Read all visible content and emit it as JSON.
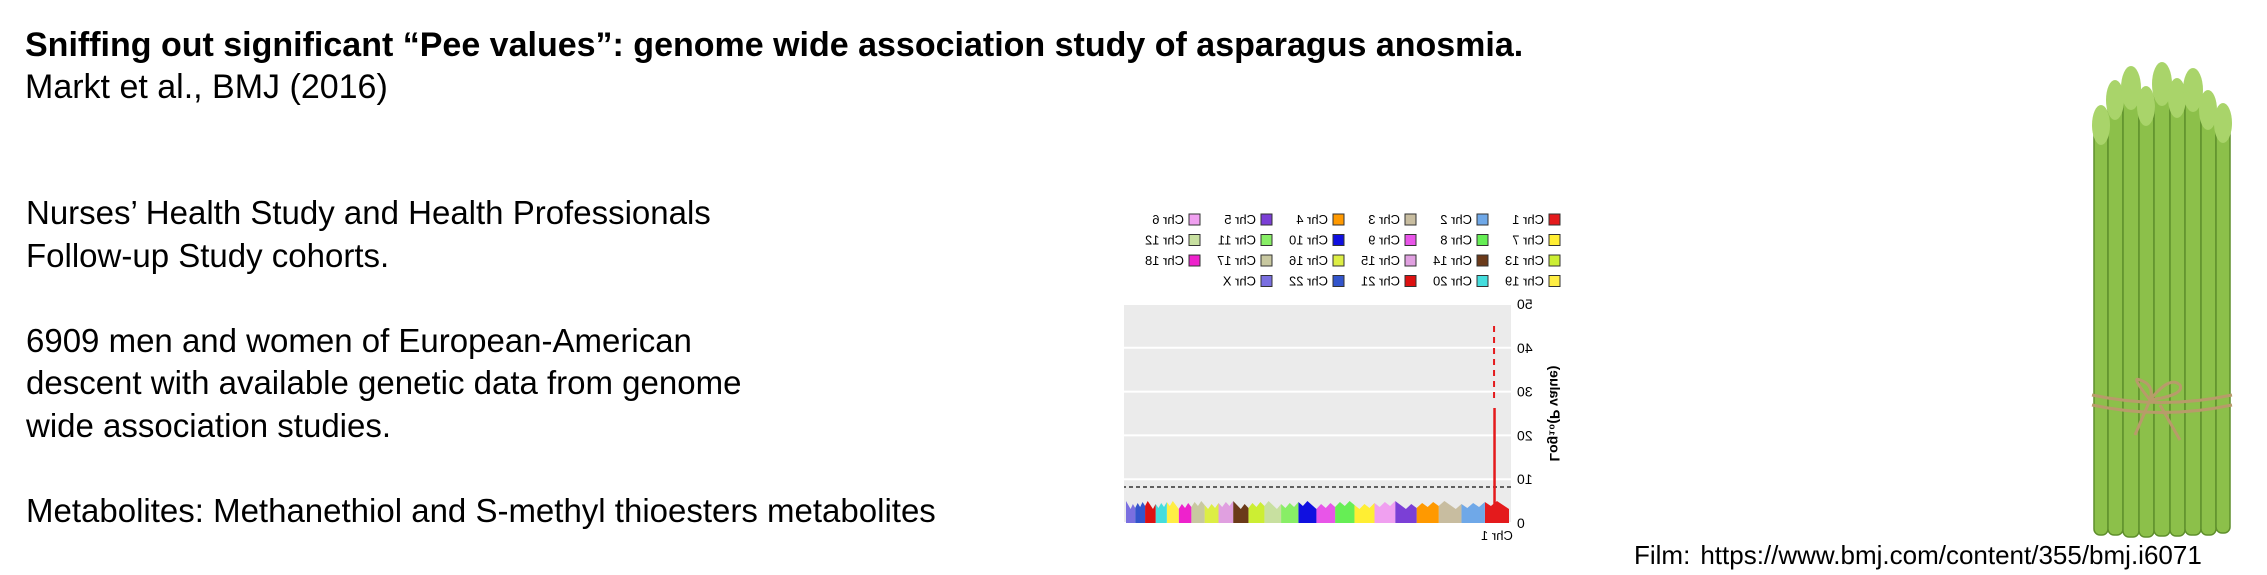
{
  "header": {
    "title": "Sniffing out significant “Pee values”: genome wide association study of asparagus anosmia.",
    "citation": "Markt et al., BMJ (2016)"
  },
  "paragraphs": [
    [
      "Nurses’ Health Study and Health Professionals",
      "Follow-up Study cohorts."
    ],
    [
      "6909 men and women of European-American",
      "descent with available genetic data from genome",
      "wide association studies."
    ],
    [
      "Metabolites: Methanethiol and S-methyl thioesters metabolites"
    ]
  ],
  "figure": {
    "legend": [
      {
        "label": "Chr 1",
        "color": "#e41a1c"
      },
      {
        "label": "Chr 2",
        "color": "#6fa8e8"
      },
      {
        "label": "Chr 3",
        "color": "#c8bda0"
      },
      {
        "label": "Chr 4",
        "color": "#ff9900"
      },
      {
        "label": "Chr 5",
        "color": "#7b3fd6"
      },
      {
        "label": "Chr 6",
        "color": "#f0a0f0"
      },
      {
        "label": "Chr 7",
        "color": "#ffee33"
      },
      {
        "label": "Chr 8",
        "color": "#66ee55"
      },
      {
        "label": "Chr 9",
        "color": "#e855e8"
      },
      {
        "label": "Chr 10",
        "color": "#1010e0"
      },
      {
        "label": "Chr 11",
        "color": "#88ee66"
      },
      {
        "label": "Chr 12",
        "color": "#c8e0a0"
      },
      {
        "label": "Chr 13",
        "color": "#ccee33"
      },
      {
        "label": "Chr 14",
        "color": "#6b3a1a"
      },
      {
        "label": "Chr 15",
        "color": "#e0a0e0"
      },
      {
        "label": "Chr 16",
        "color": "#ddee44"
      },
      {
        "label": "Chr 17",
        "color": "#c8c8a0"
      },
      {
        "label": "Chr 18",
        "color": "#ee22cc"
      },
      {
        "label": "Chr 19",
        "color": "#ffee44"
      },
      {
        "label": "Chr 20",
        "color": "#44dddd"
      },
      {
        "label": "Chr 21",
        "color": "#dd1111"
      },
      {
        "label": "Chr 22",
        "color": "#3355cc"
      },
      {
        "label": "Chr X",
        "color": "#7a6fe0"
      }
    ],
    "yticks": [
      0,
      10,
      20,
      30,
      40,
      50
    ],
    "y_label": "Log₁₀(P value)",
    "x_label": "Chr 1"
  },
  "footer": {
    "label": "Film:",
    "url": "https://www.bmj.com/content/355/bmj.i6071"
  }
}
